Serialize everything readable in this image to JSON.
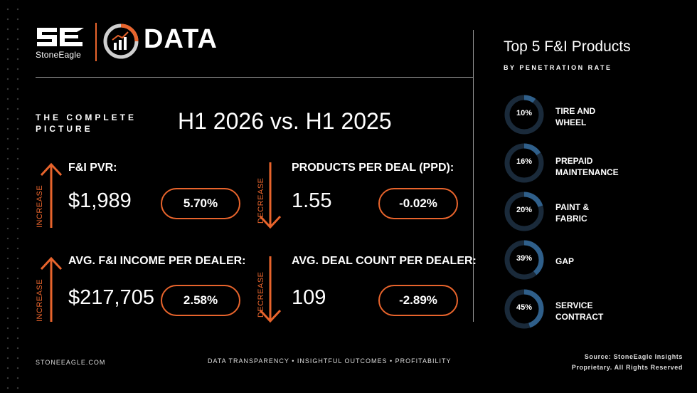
{
  "brand": {
    "company": "StoneEagle",
    "product": "DATA"
  },
  "header": {
    "kicker": "THE COMPLETE PICTURE",
    "period": "H1 2026 vs. H1 2025"
  },
  "metrics": [
    {
      "label": "F&I PVR:",
      "value": "$1,989",
      "change": "5.70%",
      "direction": "INCREASE"
    },
    {
      "label": "PRODUCTS PER DEAL (PPD):",
      "value": "1.55",
      "change": "-0.02%",
      "direction": "DECREASE"
    },
    {
      "label": "AVG. F&I INCOME PER DEALER:",
      "value": "$217,705",
      "change": "2.58%",
      "direction": "INCREASE"
    },
    {
      "label": "AVG. DEAL COUNT PER DEALER:",
      "value": "109",
      "change": "-2.89%",
      "direction": "DECREASE"
    }
  ],
  "sidebar": {
    "title": "Top 5 F&I Products",
    "subtitle": "BY PENETRATION RATE",
    "products": [
      {
        "pct_label": "10%",
        "pct": 10,
        "name_line1": "TIRE AND",
        "name_line2": "WHEEL"
      },
      {
        "pct_label": "16%",
        "pct": 16,
        "name_line1": "PREPAID",
        "name_line2": "MAINTENANCE"
      },
      {
        "pct_label": "20%",
        "pct": 20,
        "name_line1": "PAINT &",
        "name_line2": "FABRIC"
      },
      {
        "pct_label": "39%",
        "pct": 39,
        "name_line1": "GAP",
        "name_line2": ""
      },
      {
        "pct_label": "45%",
        "pct": 45,
        "name_line1": "SERVICE",
        "name_line2": "CONTRACT"
      }
    ]
  },
  "footer": {
    "website": "STONEEAGLE.COM",
    "tagline": "DATA TRANSPARENCY • INSIGHTFUL OUTCOMES • PROFITABILITY",
    "source_line1": "Source: StoneEagle Insights",
    "source_line2": "Proprietary. All Rights Reserved"
  },
  "colors": {
    "accent": "#e8642c",
    "ring_fill": "#2f5f8a",
    "ring_track": "#1a2a3a"
  },
  "icons": {
    "brand_mark": "stoneeagle-logo-icon",
    "data_mark": "chart-gauge-icon",
    "arrow_up": "arrow-up-icon",
    "arrow_down": "arrow-down-icon"
  }
}
